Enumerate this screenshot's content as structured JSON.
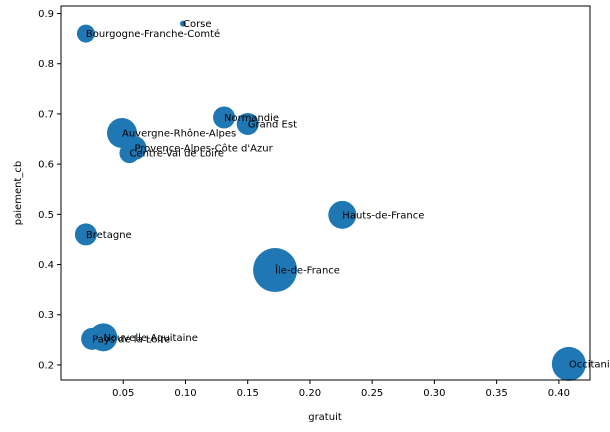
{
  "chart_data": {
    "type": "scatter",
    "xlabel": "gratuit",
    "ylabel": "paiement_cb",
    "xlim": [
      0.0,
      0.425
    ],
    "ylim": [
      0.17,
      0.915
    ],
    "xticks": [
      0.05,
      0.1,
      0.15,
      0.2,
      0.25,
      0.3,
      0.35,
      0.4
    ],
    "xtick_labels": [
      "0.05",
      "0.10",
      "0.15",
      "0.20",
      "0.25",
      "0.30",
      "0.35",
      "0.40"
    ],
    "yticks": [
      0.2,
      0.3,
      0.4,
      0.5,
      0.6,
      0.7,
      0.8,
      0.9
    ],
    "ytick_labels": [
      "0.2",
      "0.3",
      "0.4",
      "0.5",
      "0.6",
      "0.7",
      "0.8",
      "0.9"
    ],
    "marker_color": "#1f77b4",
    "grid": false,
    "legend": "none",
    "points": [
      {
        "label": "Corse",
        "x": 0.098,
        "y": 0.88,
        "size": 3
      },
      {
        "label": "Bourgogne-Franche-Comté",
        "x": 0.02,
        "y": 0.86,
        "size": 9
      },
      {
        "label": "Normandie",
        "x": 0.131,
        "y": 0.693,
        "size": 11
      },
      {
        "label": "Grand Est",
        "x": 0.15,
        "y": 0.68,
        "size": 11
      },
      {
        "label": "Auvergne-Rhône-Alpes",
        "x": 0.049,
        "y": 0.662,
        "size": 15
      },
      {
        "label": "Provence-Alpes-Côte d'Azur",
        "x": 0.059,
        "y": 0.632,
        "size": 12
      },
      {
        "label": "Centre-Val de Loire",
        "x": 0.055,
        "y": 0.622,
        "size": 10
      },
      {
        "label": "Hauts-de-France",
        "x": 0.226,
        "y": 0.499,
        "size": 14
      },
      {
        "label": "Bretagne",
        "x": 0.02,
        "y": 0.46,
        "size": 11
      },
      {
        "label": "Île-de-France",
        "x": 0.172,
        "y": 0.389,
        "size": 22
      },
      {
        "label": "Nouvelle-Aquitaine",
        "x": 0.034,
        "y": 0.255,
        "size": 14
      },
      {
        "label": "Pays de la Loire",
        "x": 0.025,
        "y": 0.252,
        "size": 11
      },
      {
        "label": "Occitanie",
        "x": 0.408,
        "y": 0.202,
        "size": 17
      }
    ]
  }
}
